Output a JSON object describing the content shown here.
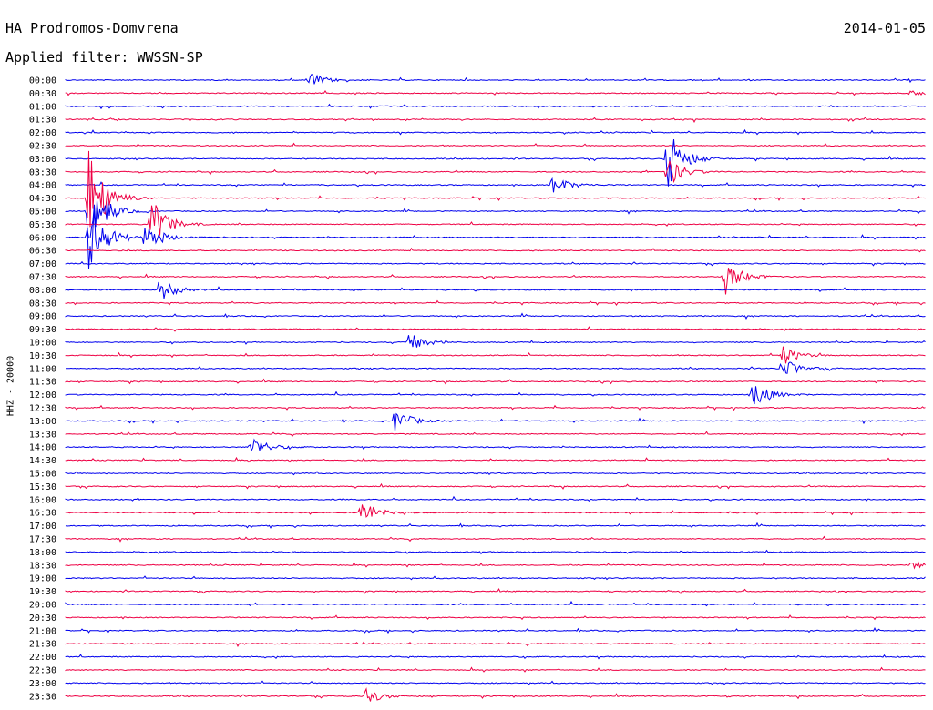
{
  "header": {
    "station": "HA Prodromos-Domvrena",
    "filter": "Applied filter: WWSSN-SP",
    "date": "2014-01-05"
  },
  "chart_data": {
    "type": "line",
    "title": "HA Prodromos-Domvrena",
    "subtitle": "Applied filter: WWSSN-SP",
    "ylabel": "HHZ - 20000",
    "xlabel": "",
    "grid": false,
    "colors": [
      "#0000ee",
      "#ee0044"
    ],
    "row_times": [
      "00:00",
      "00:30",
      "01:00",
      "01:30",
      "02:00",
      "02:30",
      "03:00",
      "03:30",
      "04:00",
      "04:30",
      "05:00",
      "05:30",
      "06:00",
      "06:30",
      "07:00",
      "07:30",
      "08:00",
      "08:30",
      "09:00",
      "09:30",
      "10:00",
      "10:30",
      "11:00",
      "11:30",
      "12:00",
      "12:30",
      "13:00",
      "13:30",
      "14:00",
      "14:30",
      "15:00",
      "15:30",
      "16:00",
      "16:30",
      "17:00",
      "17:30",
      "18:00",
      "18:30",
      "19:00",
      "19:30",
      "20:00",
      "20:30",
      "21:00",
      "21:30",
      "22:00",
      "22:30",
      "23:00",
      "23:30"
    ],
    "events": [
      {
        "row": 0,
        "minute": 8.5,
        "amplitude": 0.6
      },
      {
        "row": 1,
        "minute": 29.5,
        "amplitude": 0.2
      },
      {
        "row": 6,
        "minute": 21.0,
        "amplitude": 2.8
      },
      {
        "row": 7,
        "minute": 21.0,
        "amplitude": 1.2
      },
      {
        "row": 8,
        "minute": 17.0,
        "amplitude": 0.8
      },
      {
        "row": 9,
        "minute": 0.8,
        "amplitude": 4.5
      },
      {
        "row": 10,
        "minute": 0.8,
        "amplitude": 3.0
      },
      {
        "row": 11,
        "minute": 3.0,
        "amplitude": 2.2
      },
      {
        "row": 12,
        "minute": 0.8,
        "amplitude": 3.2
      },
      {
        "row": 12,
        "minute": 2.8,
        "amplitude": 1.3
      },
      {
        "row": 15,
        "minute": 23.0,
        "amplitude": 1.4
      },
      {
        "row": 16,
        "minute": 3.3,
        "amplitude": 0.9
      },
      {
        "row": 20,
        "minute": 12.0,
        "amplitude": 0.8
      },
      {
        "row": 21,
        "minute": 25.0,
        "amplitude": 0.8
      },
      {
        "row": 22,
        "minute": 25.0,
        "amplitude": 0.9
      },
      {
        "row": 24,
        "minute": 24.0,
        "amplitude": 1.2
      },
      {
        "row": 26,
        "minute": 11.5,
        "amplitude": 1.0
      },
      {
        "row": 28,
        "minute": 6.5,
        "amplitude": 0.9
      },
      {
        "row": 33,
        "minute": 10.3,
        "amplitude": 1.0
      },
      {
        "row": 37,
        "minute": 29.5,
        "amplitude": 0.3
      },
      {
        "row": 47,
        "minute": 10.5,
        "amplitude": 0.6
      }
    ]
  }
}
